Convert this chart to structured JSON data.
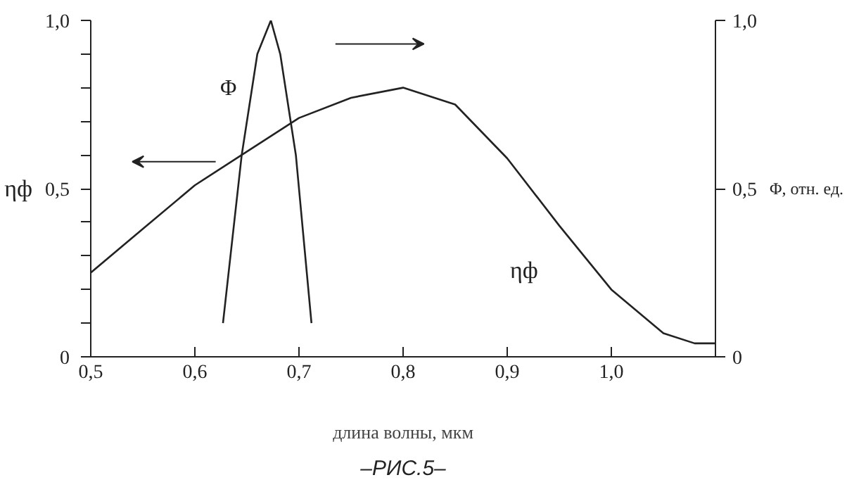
{
  "chart_data": {
    "type": "line",
    "xlabel": "длина волны, мкм",
    "ylabel": "ηф",
    "y2label": "Φ, отн. ед.",
    "xlim": [
      0.5,
      1.1
    ],
    "xticks": [
      {
        "value": 0.5,
        "label": "0,5"
      },
      {
        "value": 0.6,
        "label": "0,6"
      },
      {
        "value": 0.7,
        "label": "0,7"
      },
      {
        "value": 0.8,
        "label": "0,8"
      },
      {
        "value": 0.9,
        "label": "0,9"
      },
      {
        "value": 1.0,
        "label": "1,0"
      }
    ],
    "ylim": [
      0,
      1.0
    ],
    "yticks": [
      0,
      {
        "value": 0.1,
        "label": null
      },
      {
        "value": 0.2,
        "label": null
      },
      {
        "value": 0.3,
        "label": null
      },
      {
        "value": 0.4,
        "label": null
      },
      {
        "value": 0.5,
        "label": "0,5"
      },
      {
        "value": 0.6,
        "label": null
      },
      {
        "value": 0.7,
        "label": null
      },
      {
        "value": 0.8,
        "label": null
      },
      {
        "value": 0.9,
        "label": null
      },
      {
        "value": 1.0,
        "label": "1,0"
      }
    ],
    "y2lim": [
      0,
      1.0
    ],
    "y2ticks": [
      0,
      {
        "value": 0.5,
        "label": "0,5"
      },
      {
        "value": 1.0,
        "label": "1,0"
      }
    ],
    "series": [
      {
        "color": "#222222",
        "x": [
          0.5,
          0.55,
          0.6,
          0.65,
          0.7,
          0.75,
          0.8,
          0.85,
          0.9,
          0.95,
          1.0,
          1.05,
          1.08,
          1.1
        ],
        "values": [
          0.25,
          0.38,
          0.51,
          0.61,
          0.71,
          0.77,
          0.8,
          0.75,
          0.59,
          0.39,
          0.2,
          0.07,
          0.04,
          0.04
        ]
      },
      {
        "color": "#222222",
        "axis": "y2",
        "x": [
          0.627,
          0.645,
          0.66,
          0.673,
          0.682,
          0.697,
          0.712
        ],
        "values": [
          0.1,
          0.6,
          0.9,
          1.0,
          0.9,
          0.6,
          0.1
        ]
      }
    ],
    "annotations": [
      "Φ",
      "ηф",
      "–РИС.5–"
    ],
    "grid": false,
    "marker": "none",
    "line_style": "solid"
  }
}
